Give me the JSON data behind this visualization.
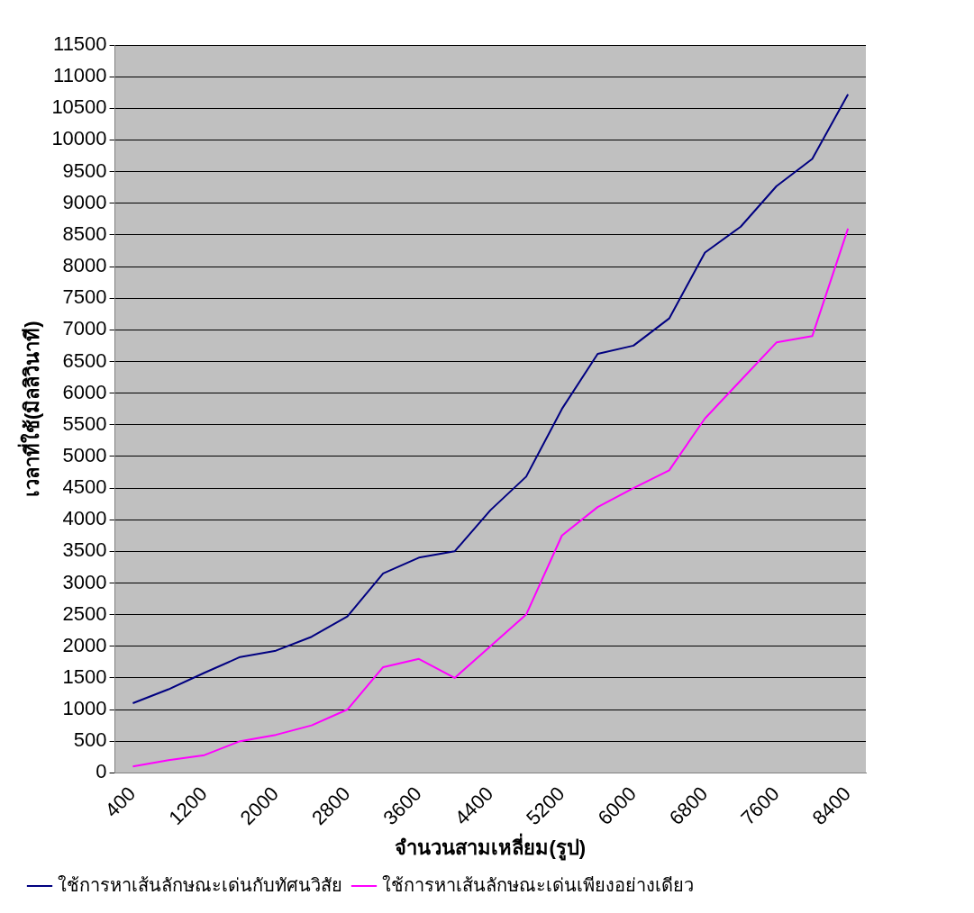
{
  "chart_data": {
    "type": "line",
    "xlabel": "จำนวนสามเหลี่ยม(รูป)",
    "ylabel": "เวลาที่ใช้(มิลลิวินาที)",
    "categories": [
      "400",
      null,
      "1200",
      null,
      "2000",
      null,
      "2800",
      null,
      "3600",
      null,
      "4400",
      null,
      "5200",
      null,
      "6000",
      null,
      "6800",
      null,
      "7600",
      null,
      "8400"
    ],
    "series": [
      {
        "name": "ใช้การหาเส้นลักษณะเด่นกับทัศนวิสัย",
        "color": "#000080",
        "values": [
          1100,
          1320,
          1580,
          1830,
          1930,
          2150,
          2470,
          3150,
          3400,
          3500,
          4150,
          4680,
          5750,
          6620,
          6750,
          7180,
          8220,
          8630,
          9270,
          9700,
          10720
        ]
      },
      {
        "name": "ใช้การหาเส้นลักษณะเด่นเพียงอย่างเดียว",
        "color": "#ff00ff",
        "values": [
          100,
          200,
          280,
          500,
          600,
          750,
          1000,
          1670,
          1800,
          1500,
          2000,
          2500,
          3750,
          4200,
          4500,
          4780,
          5600,
          6200,
          6800,
          6900,
          8600
        ]
      }
    ],
    "ylim": [
      0,
      11500
    ],
    "yticks": [
      0,
      500,
      1000,
      1500,
      2000,
      2500,
      3000,
      3500,
      4000,
      4500,
      5000,
      5500,
      6000,
      6500,
      7000,
      7500,
      8000,
      8500,
      9000,
      9500,
      10000,
      10500,
      11000,
      11500
    ],
    "grid": "y",
    "legend": "bottom left",
    "marker": "none",
    "line_style": "solid"
  }
}
